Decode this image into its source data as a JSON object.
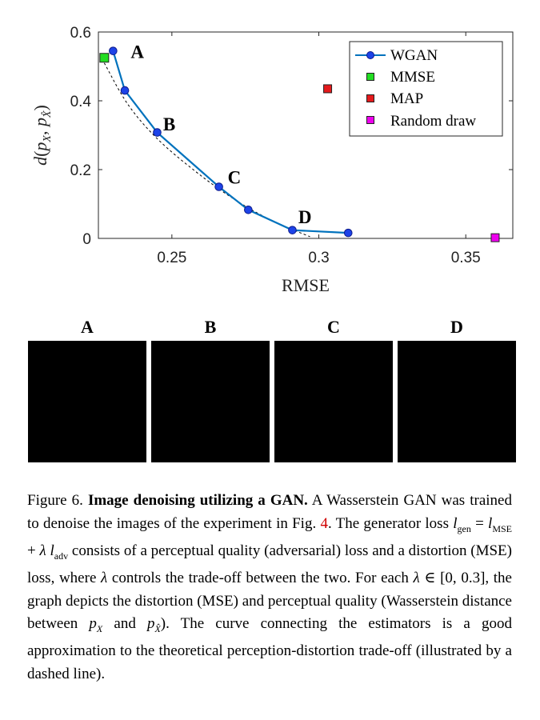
{
  "chart_data": {
    "type": "scatter",
    "xlabel": "RMSE",
    "ylabel": "d(p_X, p_X̂)",
    "xlim": [
      0.225,
      0.366
    ],
    "ylim": [
      0,
      0.6
    ],
    "xticks": [
      "0.25",
      "0.3",
      "0.35"
    ],
    "yticks": [
      "0",
      "0.2",
      "0.4",
      "0.6"
    ],
    "grid": false,
    "legend_position": "top-right",
    "series": [
      {
        "name": "WGAN",
        "marker": "circle",
        "line": true,
        "color": "#0072BD",
        "points": [
          [
            0.23,
            0.545
          ],
          [
            0.234,
            0.43
          ],
          [
            0.245,
            0.308
          ],
          [
            0.266,
            0.15
          ],
          [
            0.276,
            0.083
          ],
          [
            0.291,
            0.024
          ],
          [
            0.31,
            0.016
          ]
        ]
      },
      {
        "name": "MMSE",
        "marker": "square",
        "line": false,
        "color": "#22dd22",
        "points": [
          [
            0.227,
            0.525
          ]
        ]
      },
      {
        "name": "MAP",
        "marker": "square",
        "line": false,
        "color": "#e41a1c",
        "points": [
          [
            0.303,
            0.435
          ]
        ]
      },
      {
        "name": "Random draw",
        "marker": "square",
        "line": false,
        "color": "#ee00ee",
        "points": [
          [
            0.36,
            0.002
          ]
        ]
      }
    ],
    "tradeoff_curve": [
      [
        0.227,
        0.51
      ],
      [
        0.235,
        0.39
      ],
      [
        0.245,
        0.29
      ],
      [
        0.258,
        0.195
      ],
      [
        0.271,
        0.115
      ],
      [
        0.284,
        0.052
      ],
      [
        0.297,
        0.005
      ]
    ],
    "point_labels": [
      {
        "text": "A",
        "x": 0.236,
        "y": 0.545
      },
      {
        "text": "B",
        "x": 0.247,
        "y": 0.335
      },
      {
        "text": "C",
        "x": 0.269,
        "y": 0.18
      },
      {
        "text": "D",
        "x": 0.293,
        "y": 0.065
      }
    ]
  },
  "panels": [
    {
      "label": "A"
    },
    {
      "label": "B"
    },
    {
      "label": "C"
    },
    {
      "label": "D"
    }
  ],
  "caption": {
    "fig_num": "Figure 6.",
    "title": "Image denoising utilizing a GAN.",
    "t1": " A Wasserstein GAN was trained to denoise the images of the experiment in Fig. ",
    "ref": "4",
    "t2": ". The generator loss ",
    "l": "l",
    "gen": "gen",
    "eq": " = ",
    "mse": "MSE",
    "plus": " + ",
    "lambda": "λ",
    "adv": "adv",
    "t3": " consists of a perceptual quality (adversarial) loss and a distortion (MSE) loss, where ",
    "t4": " controls the trade-off between the two. For each ",
    "range": " ∈ [0, 0.3]",
    "t5": ", the graph depicts the distortion (MSE) and perceptual quality (Wasserstein distance between ",
    "px": "p",
    "X": "X",
    "and": " and ",
    "Xhat": "X̂",
    "t6": "). The curve connecting the estimators is a good approximation to the theoretical perception-distortion trade-off (illustrated by a dashed line)."
  }
}
